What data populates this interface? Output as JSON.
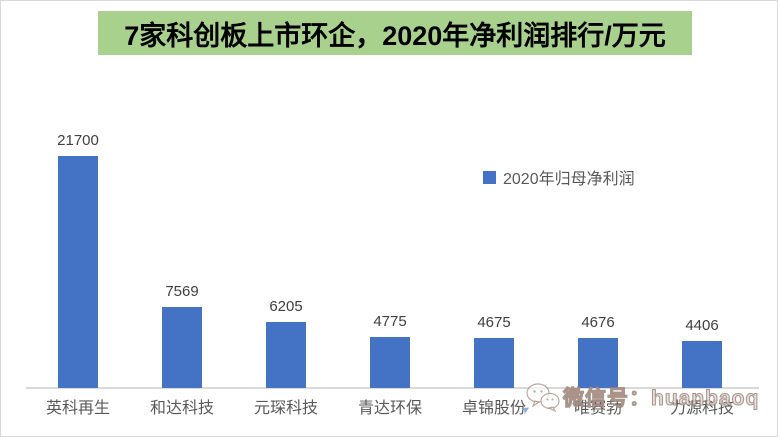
{
  "title": {
    "text": "7家科创板上市环企，2020年净利润排行/万元"
  },
  "legend": {
    "label": "2020年归母净利润",
    "marker_color": "#4472C4"
  },
  "chart_data": {
    "type": "bar",
    "categories": [
      "英科再生",
      "和达科技",
      "元琛科技",
      "青达环保",
      "卓锦股份",
      "唯赛勃",
      "力源科技"
    ],
    "values": [
      21700,
      7569,
      6205,
      4775,
      4675,
      4676,
      4406
    ],
    "series": [
      {
        "name": "2020年归母净利润",
        "values": [
          21700,
          7569,
          6205,
          4775,
          4675,
          4676,
          4406
        ]
      }
    ],
    "title": "7家科创板上市环企，2020年净利润排行/万元",
    "xlabel": "",
    "ylabel": "",
    "ylim": [
      0,
      22000
    ],
    "grid": false,
    "legend_position": "upper-right-inside",
    "data_labels": true,
    "bar_color": "#4472C4"
  },
  "watermark": {
    "text": "微信号：huanbaoq",
    "icon": "wechat-icon"
  },
  "colors": {
    "banner_bg": "#A9D18E",
    "bar": "#4472C4",
    "value_label": "#404040",
    "category_label": "#595959",
    "axis_line": "#D9D9D9"
  }
}
